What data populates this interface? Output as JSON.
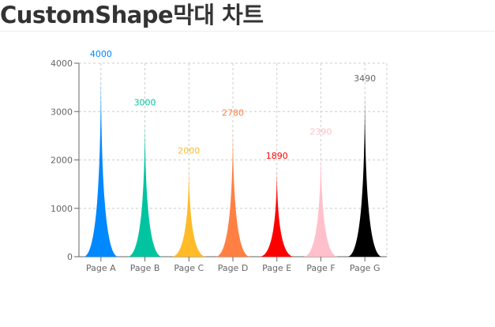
{
  "page": {
    "title": "CustomShape막대 차트"
  },
  "chart_data": {
    "type": "bar",
    "title": "CustomShape막대 차트",
    "xlabel": "",
    "ylabel": "",
    "ylim": [
      0,
      4000
    ],
    "yticks": [
      0,
      1000,
      2000,
      3000,
      4000
    ],
    "grid": true,
    "categories": [
      "Page A",
      "Page B",
      "Page C",
      "Page D",
      "Page E",
      "Page F",
      "Page G"
    ],
    "values": [
      4000,
      3000,
      2000,
      2780,
      1890,
      2390,
      3490
    ],
    "colors": [
      "#0088FE",
      "#00C49F",
      "#FFBB28",
      "#FF8042",
      "#FF0000",
      "#FFC0CB",
      "#000000"
    ],
    "label_colors": [
      "#0088FE",
      "#00C49F",
      "#FFBB28",
      "#FF8042",
      "#FF0000",
      "#FFC0CB",
      "#666666"
    ]
  }
}
